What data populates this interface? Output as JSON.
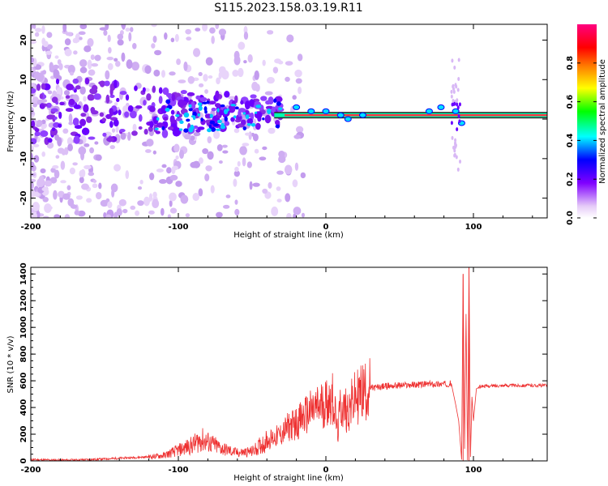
{
  "figure_title": "S115.2023.158.03.19.R11",
  "chart_data": [
    {
      "type": "heatmap",
      "xlabel": "Height of straight line (km)",
      "ylabel": "Frequency (Hz)",
      "xlim": [
        -200,
        150
      ],
      "ylim": [
        -25,
        24
      ],
      "x_ticks": [
        -200,
        -100,
        0,
        100
      ],
      "y_ticks": [
        -20,
        -10,
        0,
        10,
        20
      ],
      "colorbar": {
        "label": "Normalized spectral amplitude",
        "range": [
          0,
          1
        ],
        "ticks": [
          0.0,
          0.2,
          0.4,
          0.6,
          0.8
        ],
        "colormap": [
          "#e0c8f8",
          "#8000ff",
          "#0000ff",
          "#00ffff",
          "#00ff00",
          "#ffff00",
          "#ff8000",
          "#ff0000",
          "#ff0080"
        ]
      },
      "features": [
        {
          "description": "scattered broadband energy",
          "x_range": [
            -200,
            -30
          ],
          "y_range": [
            -25,
            24
          ]
        },
        {
          "description": "narrow carrier line near 1 Hz",
          "x_range": [
            -30,
            150
          ],
          "y": 1
        },
        {
          "description": "spread around carrier",
          "x_range": [
            85,
            95
          ],
          "y_range": [
            -13,
            16
          ]
        }
      ]
    },
    {
      "type": "line",
      "xlabel": "Height of straight line (km)",
      "ylabel": "SNR (10 * v/v)",
      "xlim": [
        -200,
        150
      ],
      "ylim": [
        0,
        1450
      ],
      "x_ticks": [
        -200,
        -100,
        0,
        100
      ],
      "y_ticks": [
        0,
        200,
        400,
        600,
        800,
        1000,
        1200,
        1400
      ],
      "series_color": "#ee3030",
      "x": [
        -200,
        -180,
        -160,
        -140,
        -120,
        -110,
        -100,
        -90,
        -85,
        -80,
        -70,
        -60,
        -50,
        -40,
        -30,
        -25,
        -20,
        -15,
        -10,
        -5,
        0,
        5,
        8,
        10,
        12,
        15,
        20,
        25,
        30,
        35,
        40,
        50,
        60,
        70,
        80,
        85,
        88,
        90,
        92,
        93,
        94,
        95,
        96,
        97,
        98,
        99,
        100,
        102,
        105,
        110,
        120,
        130,
        140,
        150
      ],
      "y": [
        10,
        5,
        10,
        20,
        30,
        40,
        80,
        120,
        160,
        140,
        90,
        60,
        70,
        150,
        200,
        260,
        280,
        330,
        370,
        400,
        440,
        470,
        200,
        420,
        390,
        380,
        470,
        520,
        545,
        550,
        560,
        565,
        570,
        575,
        575,
        580,
        420,
        300,
        10,
        1400,
        90,
        1100,
        5,
        1450,
        30,
        480,
        300,
        540,
        560,
        560,
        565,
        565,
        565,
        565
      ],
      "peaks": [
        {
          "x": 93,
          "y": 1400
        },
        {
          "x": 97,
          "y": 1450
        }
      ]
    }
  ]
}
